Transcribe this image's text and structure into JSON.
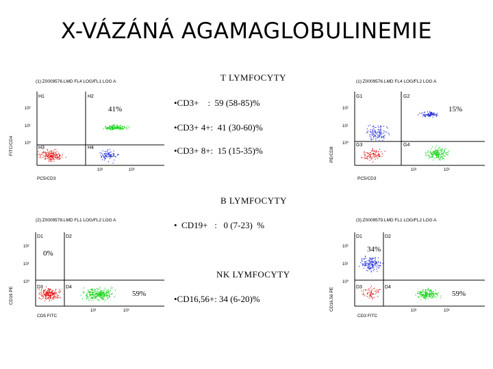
{
  "title": "X-VÁZÁNÁ AGAMAGLOBULINEMIE",
  "sections": {
    "t": {
      "heading": "T LYMFOCYTY",
      "stats": [
        "•CD3+    :  59 (58-85)%",
        "•CD3+ 4+:  41 (30-60)%",
        "•CD3+ 8+:  15 (15-35)%"
      ]
    },
    "b": {
      "heading": "B LYMFOCYTY",
      "stats": [
        "•  CD19+   :   0 (7-23)  %"
      ]
    },
    "nk": {
      "heading": "NK LYMFOCYTY",
      "stats": [
        "•CD16,56+: 34 (6-20)%"
      ]
    }
  },
  "plots": [
    {
      "header": "(1):Z0009576.LMD FL4 LOG/FL1 LOG A",
      "ylabel": "FITC/CD4",
      "xlabel": "PC5/CD3",
      "quadrants": [
        "H1",
        "H2",
        "H3",
        "H4"
      ],
      "yticks": [
        "10²",
        "10¹",
        "10⁰"
      ],
      "xticks": [
        "10¹",
        "10²"
      ],
      "percent": "41%"
    },
    {
      "header": "(1):Z0009576.LMD FL4 LOG/FL2 LOG A",
      "ylabel": "PE/CD8",
      "xlabel": "PC5/CD3",
      "quadrants": [
        "G1",
        "G2",
        "G3",
        "G4"
      ],
      "yticks": [
        "10²",
        "10¹",
        "10⁰"
      ],
      "xticks": [
        "10¹",
        "10²"
      ],
      "percent": "15%"
    },
    {
      "header": "(2):Z0009578.LMD FL1 LOG/FL2 LOG A",
      "ylabel": "CD19 PE",
      "xlabel": "CD5 FITC",
      "quadrants": [
        "D1",
        "D2",
        "D3",
        "D4"
      ],
      "yticks": [
        "10²",
        "10¹",
        "10⁰"
      ],
      "xticks": [
        "10¹",
        "10²"
      ],
      "percent_top": "0%",
      "percent_bottom": "59%"
    },
    {
      "header": "(3):Z0009579.LMD FL1 LOG/FL2 LOG A",
      "ylabel": "CD16,56 PE",
      "xlabel": "CD3 FITC",
      "quadrants": [
        "D1",
        "D2",
        "D3",
        "D4"
      ],
      "yticks": [
        "10²",
        "10¹",
        "10⁰"
      ],
      "xticks": [
        "10¹",
        "10²"
      ],
      "percent_top": "34%",
      "percent_bottom": "59%"
    }
  ],
  "colors": {
    "green": "#17d21a",
    "blue": "#2330d8",
    "red": "#e01818"
  }
}
